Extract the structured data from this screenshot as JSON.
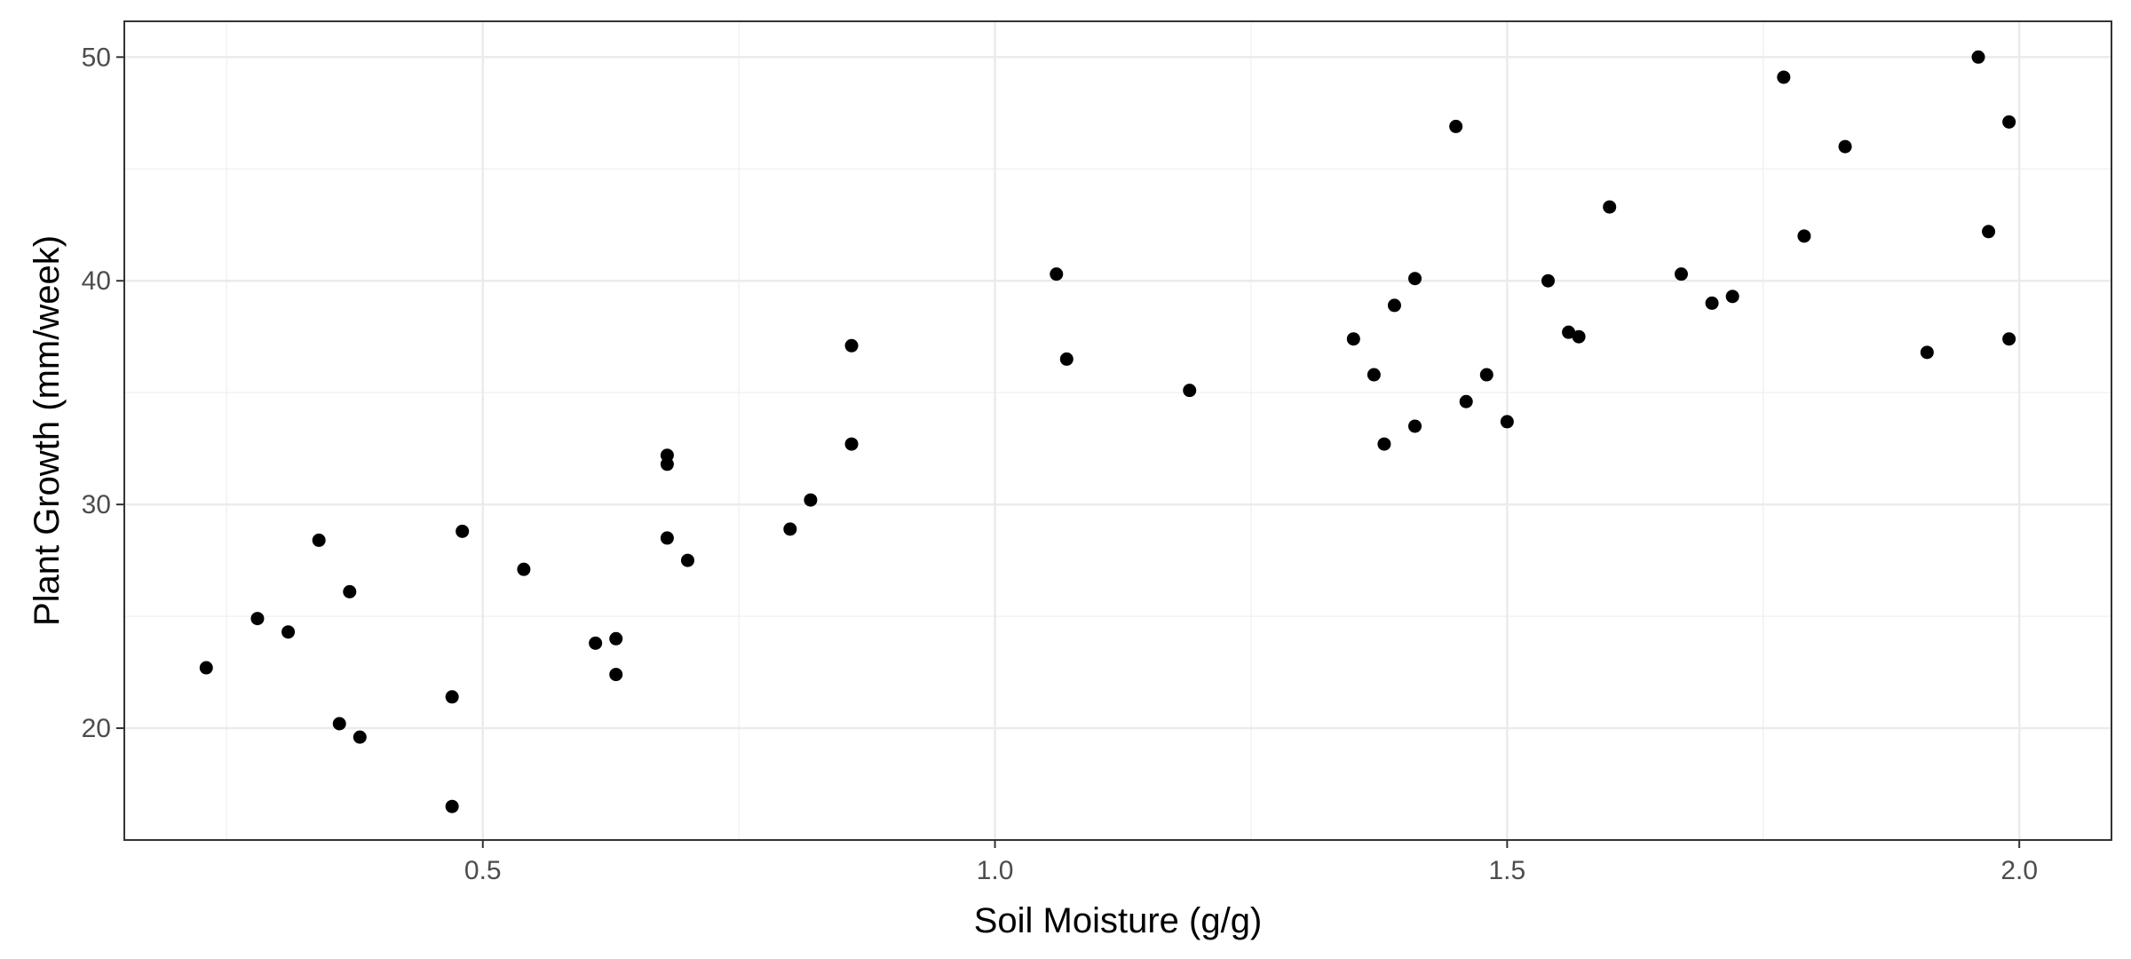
{
  "chart_data": {
    "type": "scatter",
    "title": "",
    "xlabel": "Soil Moisture (g/g)",
    "ylabel": "Plant Growth (mm/week)",
    "xlim": [
      0.15,
      2.09
    ],
    "ylim": [
      15.0,
      51.6
    ],
    "x_ticks": [
      0.5,
      1.0,
      1.5,
      2.0
    ],
    "x_tick_labels": [
      "0.5",
      "1.0",
      "1.5",
      "2.0"
    ],
    "y_ticks": [
      20,
      30,
      40,
      50
    ],
    "y_tick_labels": [
      "20",
      "30",
      "40",
      "50"
    ],
    "grid": true,
    "point_color": "#000000",
    "points": [
      {
        "x": 0.23,
        "y": 22.7
      },
      {
        "x": 0.28,
        "y": 24.9
      },
      {
        "x": 0.31,
        "y": 24.3
      },
      {
        "x": 0.34,
        "y": 28.4
      },
      {
        "x": 0.36,
        "y": 20.2
      },
      {
        "x": 0.37,
        "y": 26.1
      },
      {
        "x": 0.38,
        "y": 19.6
      },
      {
        "x": 0.47,
        "y": 21.4
      },
      {
        "x": 0.47,
        "y": 16.5
      },
      {
        "x": 0.48,
        "y": 28.8
      },
      {
        "x": 0.54,
        "y": 27.1
      },
      {
        "x": 0.61,
        "y": 23.8
      },
      {
        "x": 0.63,
        "y": 24.0
      },
      {
        "x": 0.63,
        "y": 22.4
      },
      {
        "x": 0.68,
        "y": 28.5
      },
      {
        "x": 0.68,
        "y": 31.8
      },
      {
        "x": 0.68,
        "y": 32.2
      },
      {
        "x": 0.7,
        "y": 27.5
      },
      {
        "x": 0.8,
        "y": 28.9
      },
      {
        "x": 0.82,
        "y": 30.2
      },
      {
        "x": 0.86,
        "y": 37.1
      },
      {
        "x": 0.86,
        "y": 32.7
      },
      {
        "x": 1.06,
        "y": 40.3
      },
      {
        "x": 1.07,
        "y": 36.5
      },
      {
        "x": 1.19,
        "y": 35.1
      },
      {
        "x": 1.35,
        "y": 37.4
      },
      {
        "x": 1.37,
        "y": 35.8
      },
      {
        "x": 1.38,
        "y": 32.7
      },
      {
        "x": 1.39,
        "y": 38.9
      },
      {
        "x": 1.41,
        "y": 40.1
      },
      {
        "x": 1.41,
        "y": 33.5
      },
      {
        "x": 1.45,
        "y": 46.9
      },
      {
        "x": 1.46,
        "y": 34.6
      },
      {
        "x": 1.48,
        "y": 35.8
      },
      {
        "x": 1.5,
        "y": 33.7
      },
      {
        "x": 1.54,
        "y": 40.0
      },
      {
        "x": 1.56,
        "y": 37.7
      },
      {
        "x": 1.57,
        "y": 37.5
      },
      {
        "x": 1.6,
        "y": 43.3
      },
      {
        "x": 1.67,
        "y": 40.3
      },
      {
        "x": 1.7,
        "y": 39.0
      },
      {
        "x": 1.72,
        "y": 39.3
      },
      {
        "x": 1.77,
        "y": 49.1
      },
      {
        "x": 1.79,
        "y": 42.0
      },
      {
        "x": 1.83,
        "y": 46.0
      },
      {
        "x": 1.91,
        "y": 36.8
      },
      {
        "x": 1.96,
        "y": 50.0
      },
      {
        "x": 1.97,
        "y": 42.2
      },
      {
        "x": 1.99,
        "y": 47.1
      },
      {
        "x": 1.99,
        "y": 37.4
      }
    ]
  }
}
